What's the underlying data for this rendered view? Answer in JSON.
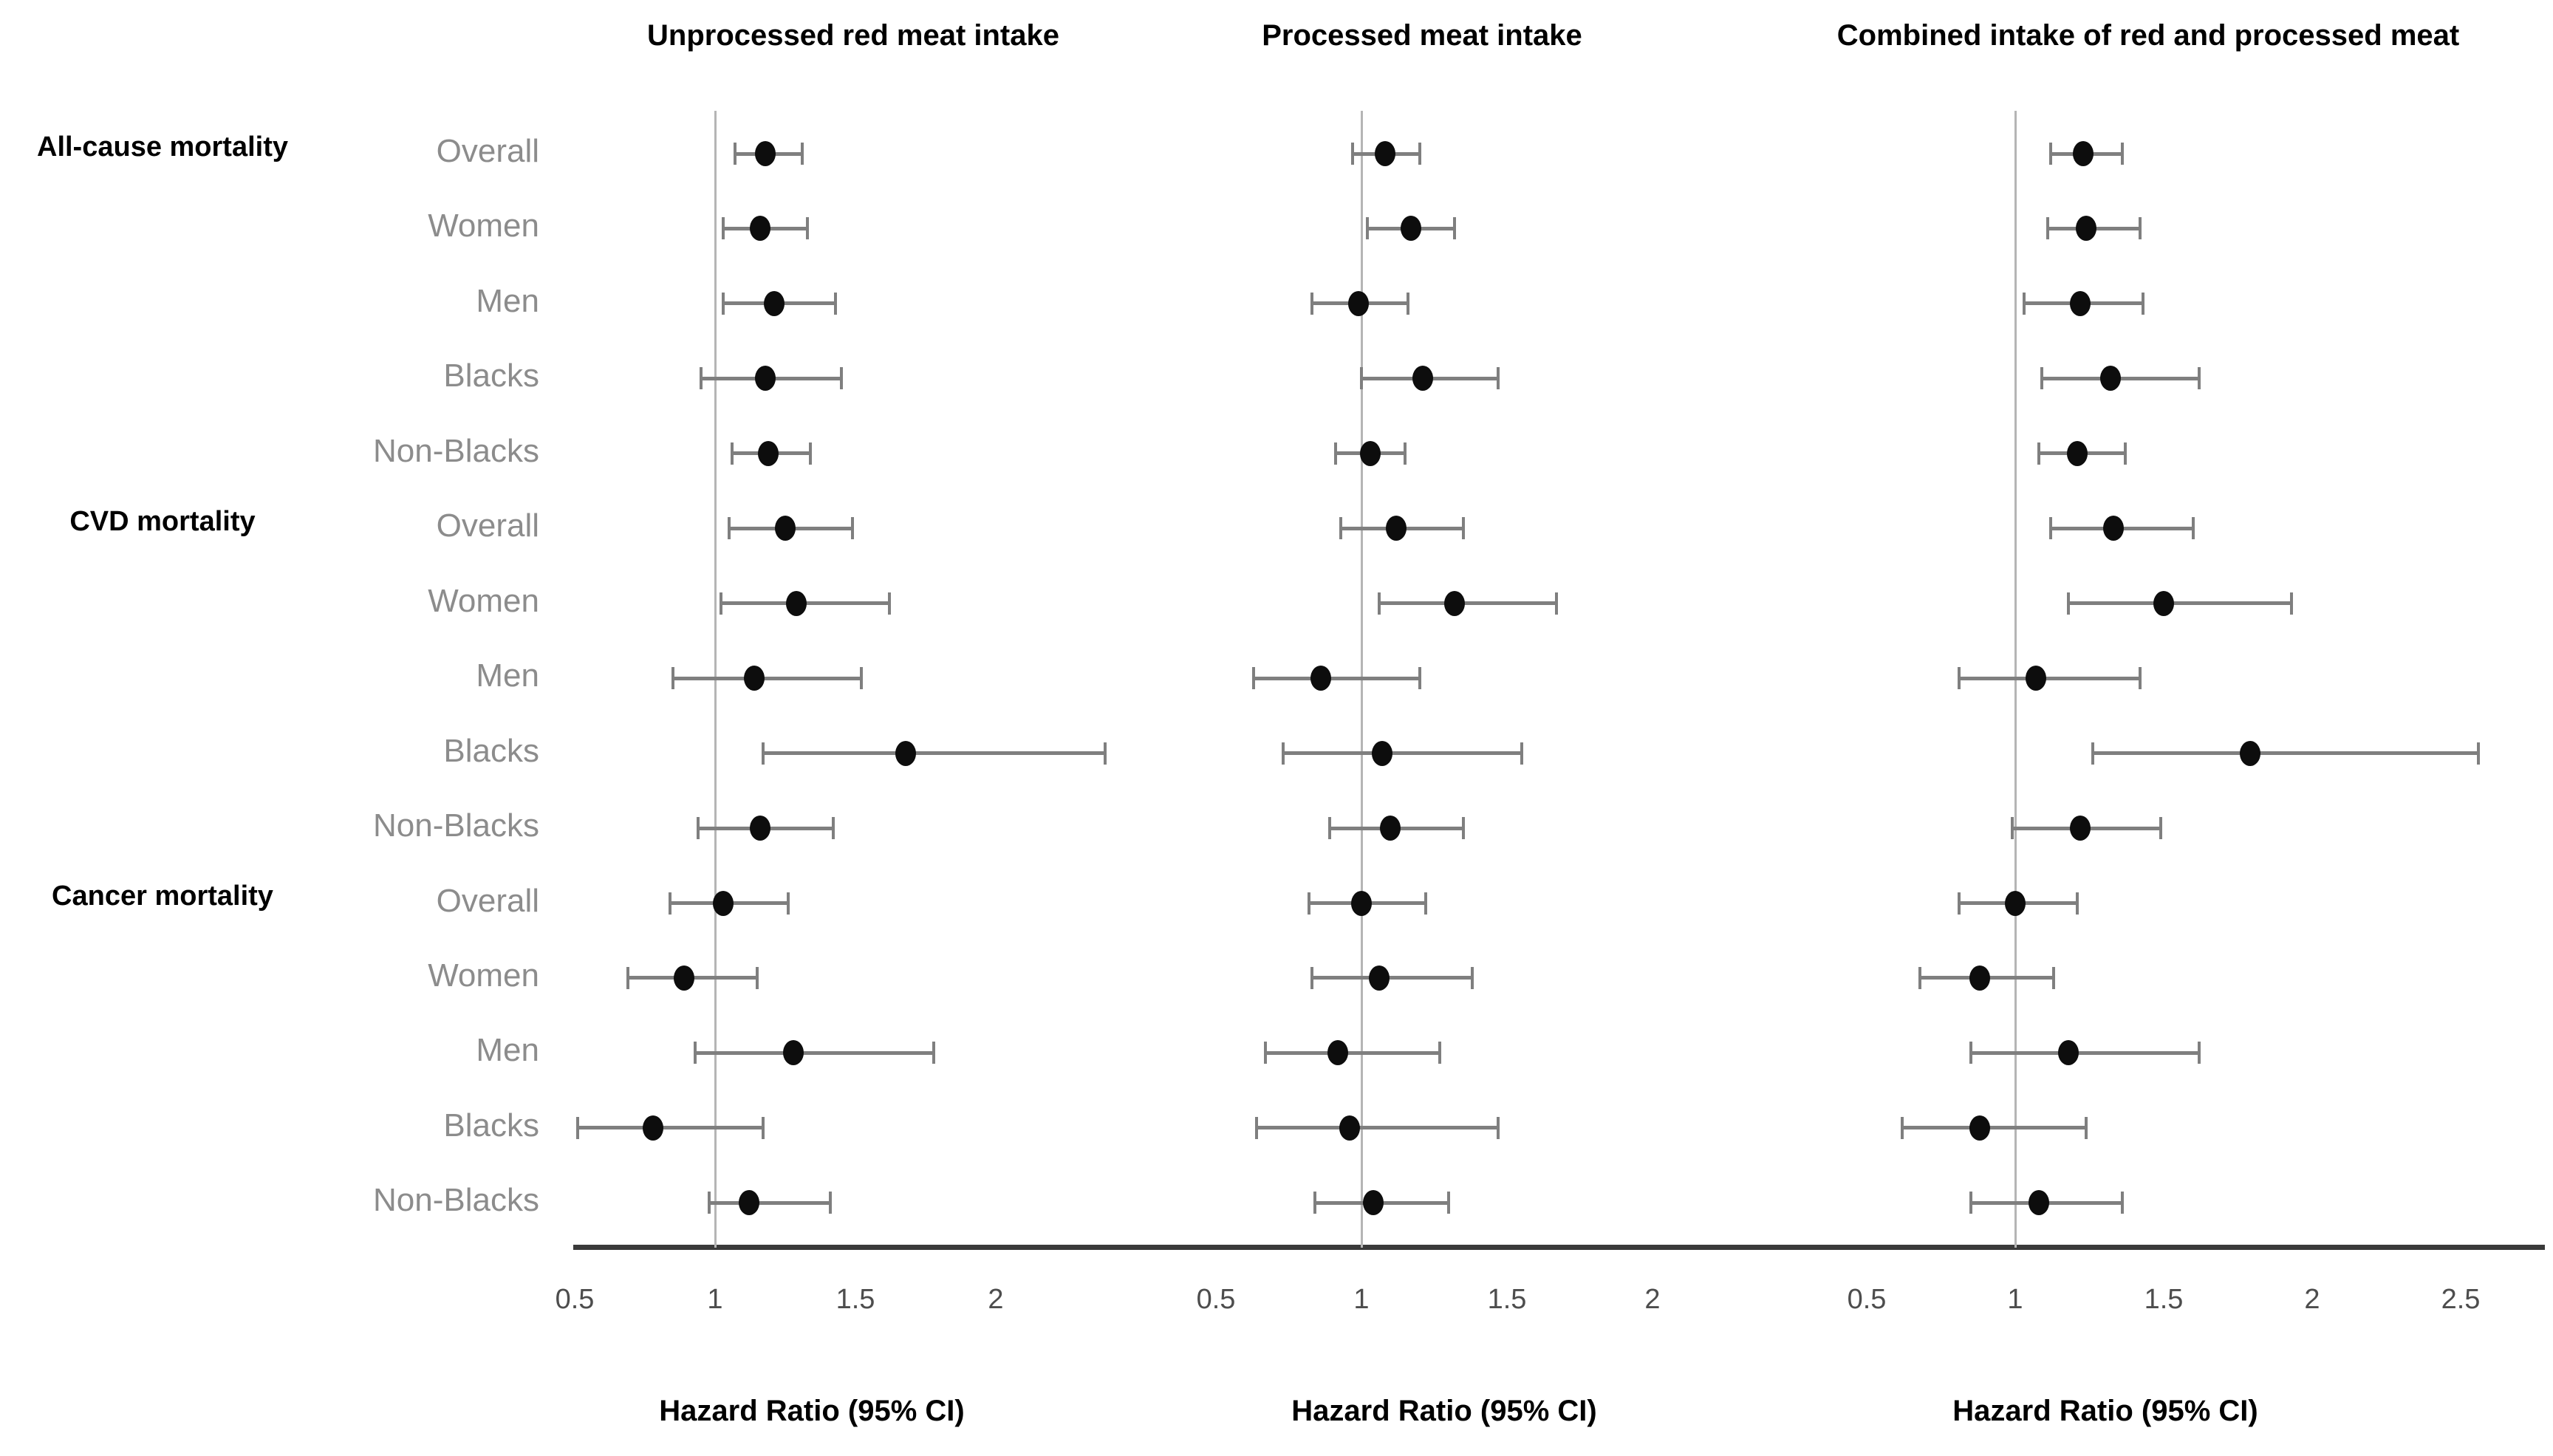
{
  "figure": {
    "kind": "forest-plot",
    "background_color": "#ffffff",
    "dot_color": "#0d0d0d",
    "ci_color": "#7f7f7f",
    "reference_line_color": "#b5b5b5",
    "axis_color": "#3a3a3a",
    "row_label_color": "#8c8c8c",
    "tick_label_color": "#4d4d4d"
  },
  "row_groups": [
    {
      "label": "All-cause mortality",
      "rows": [
        "Overall",
        "Women",
        "Men",
        "Blacks",
        "Non-Blacks"
      ]
    },
    {
      "label": "CVD mortality",
      "rows": [
        "Overall",
        "Women",
        "Men",
        "Blacks",
        "Non-Blacks"
      ]
    },
    {
      "label": "Cancer mortality",
      "rows": [
        "Overall",
        "Women",
        "Men",
        "Blacks",
        "Non-Blacks"
      ]
    }
  ],
  "panels": [
    {
      "title": "Unprocessed red meat intake",
      "xlabel": "Hazard Ratio (95% CI)",
      "ticks": [
        0.5,
        1,
        1.5,
        2
      ],
      "reference_value": 1
    },
    {
      "title": "Processed meat intake",
      "xlabel": "Hazard Ratio (95% CI)",
      "ticks": [
        0.5,
        1,
        1.5,
        2
      ],
      "reference_value": 1
    },
    {
      "title": "Combined intake of red and processed meat",
      "xlabel": "Hazard Ratio (95% CI)",
      "ticks": [
        0.5,
        1,
        1.5,
        2,
        2.5
      ],
      "reference_value": 1
    }
  ],
  "chart_data": {
    "type": "forest",
    "title": "",
    "xlabel": "Hazard Ratio (95% CI)",
    "grid": false,
    "legend": "none",
    "categories": [
      "All-cause mortality / Overall",
      "All-cause mortality / Women",
      "All-cause mortality / Men",
      "All-cause mortality / Blacks",
      "All-cause mortality / Non-Blacks",
      "CVD mortality / Overall",
      "CVD mortality / Women",
      "CVD mortality / Men",
      "CVD mortality / Blacks",
      "CVD mortality / Non-Blacks",
      "Cancer mortality / Overall",
      "Cancer mortality / Women",
      "Cancer mortality / Men",
      "Cancer mortality / Blacks",
      "Cancer mortality / Non-Blacks"
    ],
    "series": [
      {
        "name": "Unprocessed red meat intake",
        "xlim": [
          0.5,
          2.4
        ],
        "estimates_hr_lo_hi": [
          [
            1.18,
            1.07,
            1.31
          ],
          [
            1.16,
            1.03,
            1.33
          ],
          [
            1.21,
            1.03,
            1.43
          ],
          [
            1.18,
            0.95,
            1.45
          ],
          [
            1.19,
            1.06,
            1.34
          ],
          [
            1.25,
            1.05,
            1.49
          ],
          [
            1.29,
            1.02,
            1.62
          ],
          [
            1.14,
            0.85,
            1.52
          ],
          [
            1.68,
            1.17,
            2.39
          ],
          [
            1.16,
            0.94,
            1.42
          ],
          [
            1.03,
            0.84,
            1.26
          ],
          [
            0.89,
            0.69,
            1.15
          ],
          [
            1.28,
            0.93,
            1.78
          ],
          [
            0.78,
            0.51,
            1.17
          ],
          [
            1.12,
            0.98,
            1.41
          ]
        ]
      },
      {
        "name": "Processed meat intake",
        "xlim": [
          0.5,
          2.2
        ],
        "estimates_hr_lo_hi": [
          [
            1.08,
            0.97,
            1.2
          ],
          [
            1.17,
            1.02,
            1.32
          ],
          [
            0.99,
            0.83,
            1.16
          ],
          [
            1.21,
            1.0,
            1.47
          ],
          [
            1.03,
            0.91,
            1.15
          ],
          [
            1.12,
            0.93,
            1.35
          ],
          [
            1.32,
            1.06,
            1.67
          ],
          [
            0.86,
            0.63,
            1.2
          ],
          [
            1.07,
            0.73,
            1.55
          ],
          [
            1.1,
            0.89,
            1.35
          ],
          [
            1.0,
            0.82,
            1.22
          ],
          [
            1.06,
            0.83,
            1.38
          ],
          [
            0.92,
            0.67,
            1.27
          ],
          [
            0.96,
            0.64,
            1.47
          ],
          [
            1.04,
            0.84,
            1.3
          ]
        ]
      },
      {
        "name": "Combined intake of red and processed meat",
        "xlim": [
          0.5,
          2.7
        ],
        "estimates_hr_lo_hi": [
          [
            1.23,
            1.12,
            1.36
          ],
          [
            1.24,
            1.11,
            1.42
          ],
          [
            1.22,
            1.03,
            1.43
          ],
          [
            1.32,
            1.09,
            1.62
          ],
          [
            1.21,
            1.08,
            1.37
          ],
          [
            1.33,
            1.12,
            1.6
          ],
          [
            1.5,
            1.18,
            1.93
          ],
          [
            1.07,
            0.81,
            1.42
          ],
          [
            1.79,
            1.26,
            2.56
          ],
          [
            1.22,
            0.99,
            1.49
          ],
          [
            1.0,
            0.81,
            1.21
          ],
          [
            0.88,
            0.68,
            1.13
          ],
          [
            1.18,
            0.85,
            1.62
          ],
          [
            0.88,
            0.62,
            1.24
          ],
          [
            1.08,
            0.85,
            1.36
          ]
        ]
      }
    ]
  }
}
